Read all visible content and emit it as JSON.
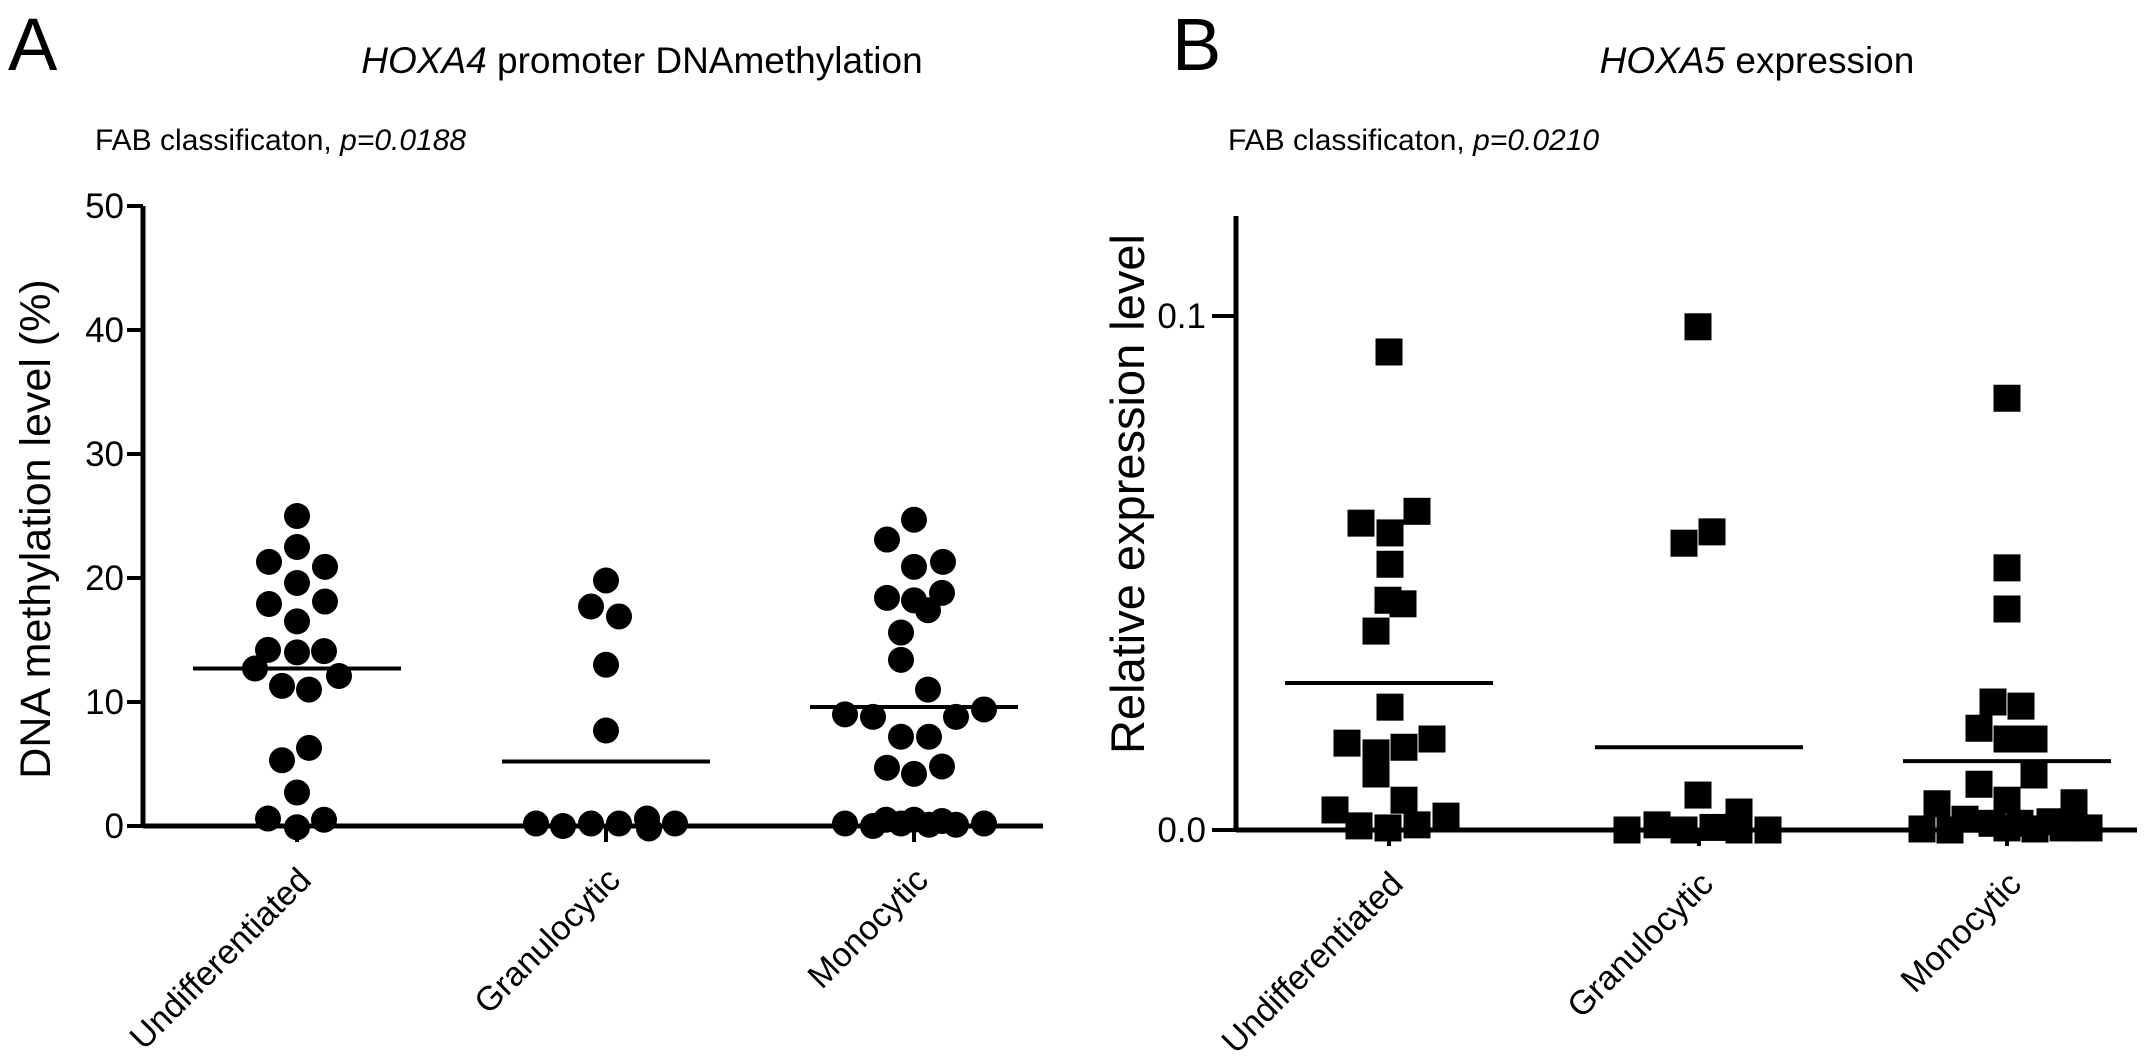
{
  "colors": {
    "ink": "#000000",
    "background": "#ffffff"
  },
  "chart_data": [
    {
      "type": "scatter",
      "panel_letter": "A",
      "title_gene": "HOXA4",
      "title_rest": " promoter DNAmethylation",
      "subtitle_prefix": "FAB classificaton, ",
      "subtitle_p": "p=0.0188",
      "ylabel": "DNA methylation level (%)",
      "ylim": [
        0,
        50
      ],
      "marker": "circle",
      "legend": "none",
      "grid": false,
      "yticks": [
        {
          "value": 0,
          "label": "0"
        },
        {
          "value": 10,
          "label": "10"
        },
        {
          "value": 20,
          "label": "20"
        },
        {
          "value": 30,
          "label": "30"
        },
        {
          "value": 40,
          "label": "40"
        },
        {
          "value": 50,
          "label": "50"
        }
      ],
      "categories": [
        "Undifferentiated",
        "Granulocytic",
        "Monocytic"
      ],
      "groups": [
        {
          "category": "Undifferentiated",
          "median": 12.7,
          "points": [
            [
              0,
              25.0
            ],
            [
              0,
              22.5
            ],
            [
              -28,
              21.3
            ],
            [
              28,
              20.9
            ],
            [
              0,
              19.6
            ],
            [
              -28,
              17.9
            ],
            [
              28,
              18.1
            ],
            [
              0,
              16.5
            ],
            [
              -29,
              14.2
            ],
            [
              0,
              14.0
            ],
            [
              27,
              14.1
            ],
            [
              -42,
              12.7
            ],
            [
              42,
              12.1
            ],
            [
              -15,
              11.3
            ],
            [
              12,
              11.0
            ],
            [
              12,
              6.3
            ],
            [
              -15,
              5.3
            ],
            [
              0,
              2.7
            ],
            [
              -29,
              0.6
            ],
            [
              0,
              -0.1
            ],
            [
              27,
              0.5
            ]
          ]
        },
        {
          "category": "Granulocytic",
          "median": 5.2,
          "points": [
            [
              0,
              19.8
            ],
            [
              -15,
              17.7
            ],
            [
              13,
              16.9
            ],
            [
              0,
              13.0
            ],
            [
              0,
              7.7
            ],
            [
              -70,
              0.2
            ],
            [
              -43,
              0.0
            ],
            [
              -15,
              0.2
            ],
            [
              13,
              0.2
            ],
            [
              41,
              0.6
            ],
            [
              43,
              -0.2
            ],
            [
              69,
              0.2
            ]
          ]
        },
        {
          "category": "Monocytic",
          "median": 9.6,
          "points": [
            [
              0,
              24.7
            ],
            [
              -27,
              23.1
            ],
            [
              29,
              21.3
            ],
            [
              0,
              20.9
            ],
            [
              28,
              18.8
            ],
            [
              -27,
              18.4
            ],
            [
              0,
              18.2
            ],
            [
              14,
              17.4
            ],
            [
              -13,
              15.6
            ],
            [
              -13,
              13.4
            ],
            [
              14,
              11.0
            ],
            [
              70,
              9.4
            ],
            [
              -69,
              9.0
            ],
            [
              -41,
              8.8
            ],
            [
              42,
              8.8
            ],
            [
              -13,
              7.2
            ],
            [
              15,
              7.2
            ],
            [
              28,
              4.8
            ],
            [
              -27,
              4.7
            ],
            [
              0,
              4.2
            ],
            [
              -69,
              0.2
            ],
            [
              -41,
              0.0
            ],
            [
              -28,
              0.5
            ],
            [
              -13,
              0.2
            ],
            [
              0,
              0.5
            ],
            [
              15,
              0.1
            ],
            [
              28,
              0.4
            ],
            [
              42,
              0.1
            ],
            [
              70,
              0.2
            ]
          ]
        }
      ]
    },
    {
      "type": "scatter",
      "panel_letter": "B",
      "title_gene": "HOXA5",
      "title_rest": " expression",
      "subtitle_prefix": "FAB classificaton, ",
      "subtitle_p": "p=0.0210",
      "ylabel": "Relative expression level",
      "ylim": [
        0,
        0.12
      ],
      "marker": "square",
      "legend": "none",
      "grid": false,
      "yticks": [
        {
          "value": 0,
          "label": "0.0"
        },
        {
          "value": 0.1,
          "label": "0.1"
        }
      ],
      "categories": [
        "Undifferentiated",
        "Granulocytic",
        "Monocytic"
      ],
      "groups": [
        {
          "category": "Undifferentiated",
          "median": 0.0286,
          "points": [
            [
              0,
              0.093
            ],
            [
              28,
              0.062
            ],
            [
              -28,
              0.0597
            ],
            [
              1,
              0.0578
            ],
            [
              1,
              0.0517
            ],
            [
              -1,
              0.0447
            ],
            [
              14,
              0.044
            ],
            [
              -13,
              0.0387
            ],
            [
              1,
              0.0239
            ],
            [
              -42,
              0.0169
            ],
            [
              15,
              0.0161
            ],
            [
              -13,
              0.015
            ],
            [
              43,
              0.0177
            ],
            [
              -13,
              0.0109
            ],
            [
              15,
              0.0058
            ],
            [
              -54,
              0.0039
            ],
            [
              57,
              0.0027
            ],
            [
              -30,
              0.0008
            ],
            [
              -1,
              0.0004
            ],
            [
              28,
              0.001
            ]
          ]
        },
        {
          "category": "Granulocytic",
          "median": 0.0161,
          "points": [
            [
              -1,
              0.0979
            ],
            [
              13,
              0.058
            ],
            [
              -15,
              0.0558
            ],
            [
              -1,
              0.0068
            ],
            [
              40,
              0.0035
            ],
            [
              -72,
              0.0
            ],
            [
              -42,
              0.001
            ],
            [
              -15,
              0.0
            ],
            [
              14,
              0.0005
            ],
            [
              40,
              0.0
            ],
            [
              69,
              0.0
            ]
          ]
        },
        {
          "category": "Monocytic",
          "median": 0.0134,
          "points": [
            [
              0,
              0.084
            ],
            [
              0,
              0.051
            ],
            [
              0,
              0.043
            ],
            [
              -14,
              0.0249
            ],
            [
              14,
              0.0241
            ],
            [
              -28,
              0.0198
            ],
            [
              0,
              0.0177
            ],
            [
              27,
              0.0177
            ],
            [
              27,
              0.0107
            ],
            [
              -28,
              0.0089
            ],
            [
              0,
              0.0058
            ],
            [
              -70,
              0.0051
            ],
            [
              67,
              0.0053
            ],
            [
              -85,
              0.0002
            ],
            [
              -57,
              0.0
            ],
            [
              -42,
              0.0021
            ],
            [
              -15,
              0.0013
            ],
            [
              0,
              0.0004
            ],
            [
              13,
              0.0013
            ],
            [
              28,
              0.0002
            ],
            [
              43,
              0.0016
            ],
            [
              56,
              0.0004
            ],
            [
              82,
              0.0004
            ]
          ]
        }
      ]
    }
  ]
}
